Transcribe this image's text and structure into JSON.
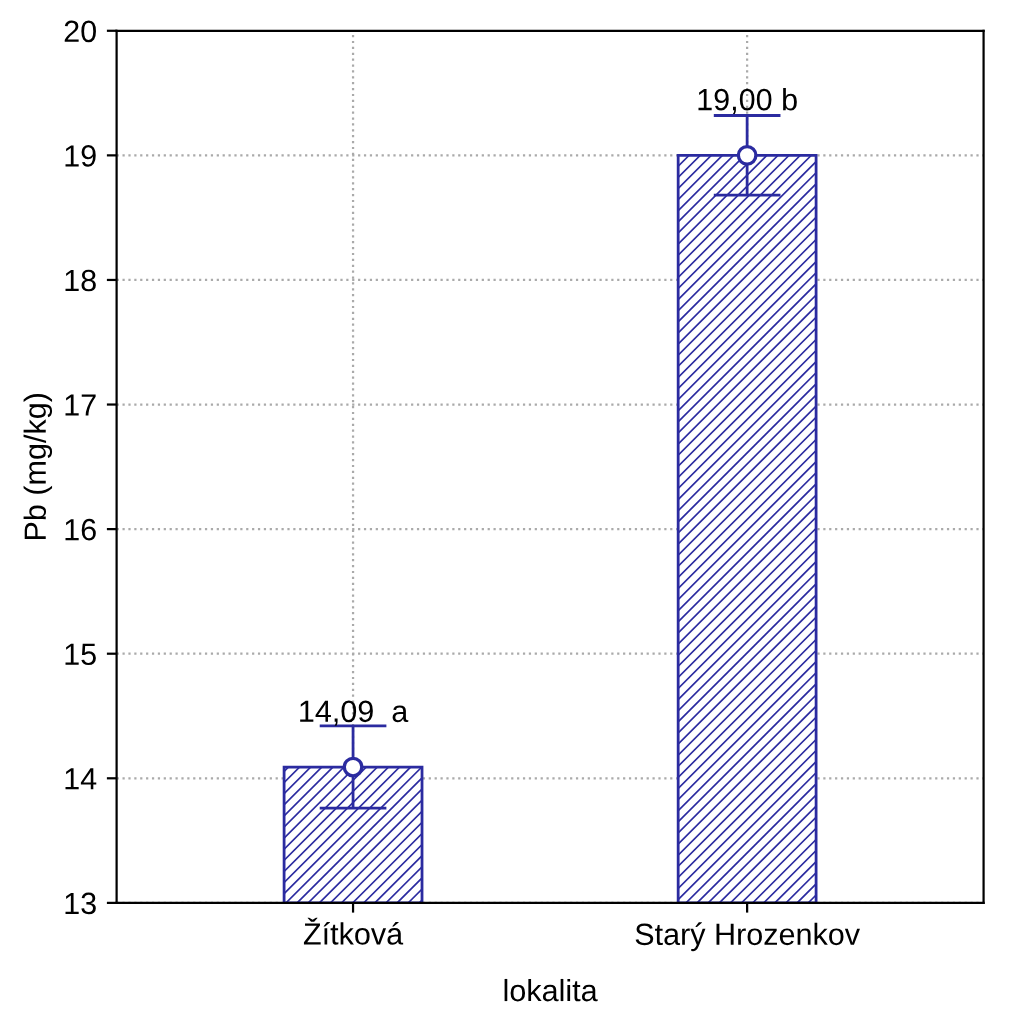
{
  "chart_data": {
    "type": "bar",
    "xlabel": "lokalita",
    "ylabel": "Pb (mg/kg)",
    "categories": [
      "Žítková",
      "Starý Hrozenkov"
    ],
    "series": [
      {
        "color": "#2b2ba0",
        "values": [
          14.09,
          19.0
        ],
        "errors": [
          0.33,
          0.32
        ],
        "value_labels": [
          "14,09  a",
          "19,00 b"
        ]
      },
      {
        "type": "scatter",
        "color": "#2b2ba0",
        "x": [
          "Žítková",
          "Starý Hrozenkov"
        ],
        "values": [
          14.09,
          19.0
        ],
        "marker": "circle"
      }
    ],
    "ylim": [
      13,
      20
    ],
    "yticks": [
      13,
      14,
      15,
      16,
      17,
      18,
      19,
      20
    ],
    "grid": true
  }
}
